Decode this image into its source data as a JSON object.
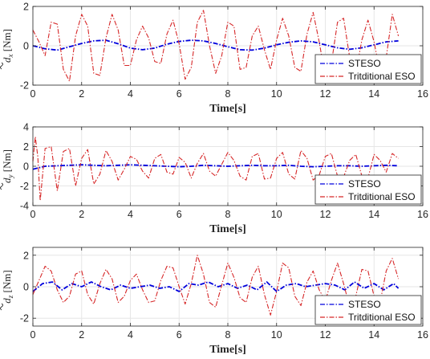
{
  "chart_data": [
    {
      "type": "line",
      "title": "",
      "xlabel": "Time[s]",
      "ylabel": {
        "symbol": "d",
        "subscript": "x",
        "unit": " [Nm]"
      },
      "xlim": [
        0,
        16
      ],
      "ylim": [
        -2,
        2
      ],
      "xticks": [
        "0",
        "2",
        "4",
        "6",
        "8",
        "10",
        "12",
        "14",
        "16"
      ],
      "yticks": [
        "-2",
        "0",
        "2"
      ],
      "grid": true,
      "legend_position": "bottom-right",
      "series": [
        {
          "name": "STESO",
          "color": "#0000dd",
          "style": "dash-dot",
          "x": [
            0,
            0.5,
            1,
            1.5,
            2,
            2.5,
            3,
            3.5,
            4,
            4.5,
            5,
            5.5,
            6,
            6.5,
            7,
            7.5,
            8,
            8.5,
            9,
            9.5,
            10,
            10.5,
            11,
            11.5,
            12,
            12.5,
            13,
            13.5,
            14,
            14.5,
            15
          ],
          "y": [
            0.0,
            -0.15,
            -0.22,
            -0.05,
            0.12,
            0.25,
            0.28,
            0.1,
            -0.12,
            -0.2,
            -0.12,
            0.08,
            0.22,
            0.28,
            0.25,
            0.12,
            -0.05,
            -0.2,
            -0.22,
            -0.12,
            0.05,
            0.18,
            0.25,
            0.2,
            0.05,
            -0.1,
            -0.18,
            -0.1,
            0.05,
            0.2,
            0.25
          ]
        },
        {
          "name": "Tritditional ESO",
          "color": "#d62728",
          "style": "dash-dot",
          "x": [
            0,
            0.25,
            0.5,
            0.75,
            1,
            1.25,
            1.5,
            1.75,
            2,
            2.25,
            2.5,
            2.75,
            3,
            3.25,
            3.5,
            3.75,
            4,
            4.25,
            4.5,
            4.75,
            5,
            5.25,
            5.5,
            5.75,
            6,
            6.25,
            6.5,
            6.75,
            7,
            7.25,
            7.5,
            7.75,
            8,
            8.25,
            8.5,
            8.75,
            9,
            9.25,
            9.5,
            9.75,
            10,
            10.25,
            10.5,
            10.75,
            11,
            11.25,
            11.5,
            11.75,
            12,
            12.25,
            12.5,
            12.75,
            13,
            13.25,
            13.5,
            13.75,
            14,
            14.25,
            14.5,
            14.75,
            15
          ],
          "y": [
            0.8,
            0.2,
            -0.5,
            1.2,
            1.1,
            -1.2,
            -1.8,
            0.5,
            1.6,
            1.0,
            -1.4,
            -1.5,
            0.4,
            1.6,
            0.8,
            -1.0,
            -1.0,
            0.3,
            1.0,
            0.4,
            -0.8,
            -0.9,
            0.6,
            1.3,
            0.1,
            -1.7,
            -1.1,
            1.2,
            1.8,
            0.0,
            -1.4,
            -0.5,
            1.2,
            1.0,
            -1.2,
            -1.1,
            0.5,
            1.0,
            -0.2,
            -1.2,
            0.3,
            1.4,
            0.5,
            -1.1,
            -1.3,
            0.6,
            1.7,
            0.2,
            -1.6,
            -0.9,
            1.2,
            1.4,
            -0.6,
            -1.4,
            0.3,
            1.3,
            0.2,
            -1.4,
            -0.6,
            1.6,
            0.5
          ]
        }
      ]
    },
    {
      "type": "line",
      "title": "",
      "xlabel": "Time[s]",
      "ylabel": {
        "symbol": "d",
        "subscript": "y",
        "unit": " [Nm]"
      },
      "xlim": [
        0,
        16
      ],
      "ylim": [
        -4,
        4
      ],
      "xticks": [
        "0",
        "2",
        "4",
        "6",
        "8",
        "10",
        "12",
        "14",
        "16"
      ],
      "yticks": [
        "-4",
        "-2",
        "0",
        "2",
        "4"
      ],
      "grid": true,
      "legend_position": "bottom-right",
      "series": [
        {
          "name": "STESO",
          "color": "#0000dd",
          "style": "dash-dot",
          "x": [
            0,
            0.5,
            1,
            1.5,
            2,
            2.5,
            3,
            3.5,
            4,
            4.5,
            5,
            5.5,
            6,
            6.5,
            7,
            7.5,
            8,
            8.5,
            9,
            9.5,
            10,
            10.5,
            11,
            11.5,
            12,
            12.5,
            13,
            13.5,
            14,
            14.5,
            15
          ],
          "y": [
            -0.3,
            0.0,
            0.05,
            0.1,
            0.15,
            0.1,
            0.05,
            0.1,
            0.15,
            0.1,
            0.05,
            0.0,
            -0.05,
            0.0,
            0.1,
            0.05,
            0.0,
            0.05,
            0.1,
            0.05,
            0.05,
            0.1,
            0.0,
            -0.05,
            0.0,
            0.05,
            0.05,
            0.0,
            0.05,
            0.1,
            0.05
          ]
        },
        {
          "name": "Tritditional ESO",
          "color": "#d62728",
          "style": "dash-dot",
          "x": [
            0,
            0.1,
            0.2,
            0.3,
            0.5,
            0.75,
            1,
            1.25,
            1.5,
            1.75,
            2,
            2.25,
            2.5,
            2.75,
            3,
            3.25,
            3.5,
            3.75,
            4,
            4.25,
            4.5,
            4.75,
            5,
            5.25,
            5.5,
            5.75,
            6,
            6.25,
            6.5,
            6.75,
            7,
            7.25,
            7.5,
            7.75,
            8,
            8.25,
            8.5,
            8.75,
            9,
            9.25,
            9.5,
            9.75,
            10,
            10.25,
            10.5,
            10.75,
            11,
            11.25,
            11.5,
            11.75,
            12,
            12.25,
            12.5,
            12.75,
            13,
            13.25,
            13.5,
            13.75,
            14,
            14.25,
            14.5,
            14.75,
            15
          ],
          "y": [
            0.5,
            3.0,
            1.0,
            -3.5,
            1.8,
            2.0,
            -2.5,
            1.5,
            1.8,
            -2.0,
            0.8,
            1.7,
            -1.8,
            -0.8,
            1.6,
            0.5,
            -1.4,
            -0.3,
            1.0,
            0.7,
            -0.5,
            -1.2,
            0.8,
            1.2,
            -0.6,
            -0.8,
            0.9,
            0.4,
            -1.2,
            0.3,
            1.3,
            -0.5,
            -1.0,
            0.2,
            1.4,
            0.6,
            -1.0,
            -1.4,
            1.0,
            1.3,
            -1.3,
            -1.2,
            0.8,
            1.4,
            -0.8,
            -1.3,
            1.6,
            0.8,
            -1.4,
            -0.9,
            1.0,
            1.3,
            -1.0,
            -1.1,
            0.6,
            1.2,
            -1.0,
            -1.2,
            1.2,
            0.6,
            -0.6,
            1.3,
            0.8
          ]
        }
      ]
    },
    {
      "type": "line",
      "title": "",
      "xlabel": "Time[s]",
      "ylabel": {
        "symbol": "d",
        "subscript": "z",
        "unit": " [Nm]"
      },
      "xlim": [
        0,
        16
      ],
      "ylim": [
        -2.5,
        2.5
      ],
      "xticks": [
        "0",
        "2",
        "4",
        "6",
        "8",
        "10",
        "12",
        "14",
        "16"
      ],
      "yticks": [
        "-2",
        "0",
        "2"
      ],
      "grid": true,
      "legend_position": "bottom-right",
      "series": [
        {
          "name": "STESO",
          "color": "#0000dd",
          "style": "dash-dot",
          "x": [
            0,
            0.4,
            0.8,
            1.2,
            1.6,
            2.0,
            2.4,
            2.8,
            3.2,
            3.6,
            4.0,
            4.4,
            4.8,
            5.2,
            5.6,
            6.0,
            6.4,
            6.8,
            7.2,
            7.6,
            8.0,
            8.4,
            8.8,
            9.2,
            9.6,
            10.0,
            10.4,
            10.8,
            11.2,
            11.6,
            12.0,
            12.4,
            12.8,
            13.2,
            13.6,
            14.0,
            14.4,
            14.8,
            15
          ],
          "y": [
            -0.3,
            0.2,
            0.3,
            -0.2,
            0.2,
            0.0,
            0.3,
            0.0,
            -0.2,
            0.1,
            -0.1,
            0.0,
            0.1,
            -0.1,
            0.0,
            -0.3,
            0.2,
            0.1,
            0.3,
            0.0,
            0.2,
            -0.1,
            0.1,
            -0.2,
            0.3,
            -0.3,
            0.1,
            0.2,
            0.0,
            0.1,
            0.2,
            0.1,
            -0.2,
            0.3,
            -0.1,
            0.2,
            -0.2,
            0.2,
            -0.1
          ]
        },
        {
          "name": "Tritditional ESO",
          "color": "#d62728",
          "style": "dash-dot",
          "x": [
            0,
            0.25,
            0.5,
            0.75,
            1,
            1.25,
            1.5,
            1.75,
            2,
            2.25,
            2.5,
            2.75,
            3,
            3.25,
            3.5,
            3.75,
            4,
            4.25,
            4.5,
            4.75,
            5,
            5.25,
            5.5,
            5.75,
            6,
            6.25,
            6.5,
            6.75,
            7,
            7.25,
            7.5,
            7.75,
            8,
            8.25,
            8.5,
            8.75,
            9,
            9.25,
            9.5,
            9.75,
            10,
            10.25,
            10.5,
            10.75,
            11,
            11.25,
            11.5,
            11.75,
            12,
            12.25,
            12.5,
            12.75,
            13,
            13.25,
            13.5,
            13.75,
            14,
            14.25,
            14.5,
            14.75,
            15
          ],
          "y": [
            -0.5,
            0.4,
            1.3,
            1.0,
            -0.2,
            -1.0,
            -0.6,
            0.8,
            1.0,
            -0.5,
            -1.1,
            0.2,
            1.1,
            0.5,
            -1.0,
            -0.6,
            0.4,
            0.8,
            -0.2,
            -1.0,
            -0.9,
            0.4,
            1.3,
            1.2,
            0.0,
            -1.1,
            0.2,
            2.0,
            0.8,
            -1.0,
            -1.3,
            0.1,
            1.5,
            0.6,
            -0.7,
            -1.0,
            0.6,
            1.3,
            -0.5,
            -1.8,
            -0.3,
            1.5,
            1.2,
            -0.6,
            -1.2,
            0.3,
            1.0,
            -0.2,
            -0.9,
            0.4,
            1.5,
            0.2,
            -1.3,
            -0.6,
            1.1,
            1.0,
            -0.6,
            -1.0,
            1.0,
            1.8,
            0.5
          ]
        }
      ]
    }
  ]
}
